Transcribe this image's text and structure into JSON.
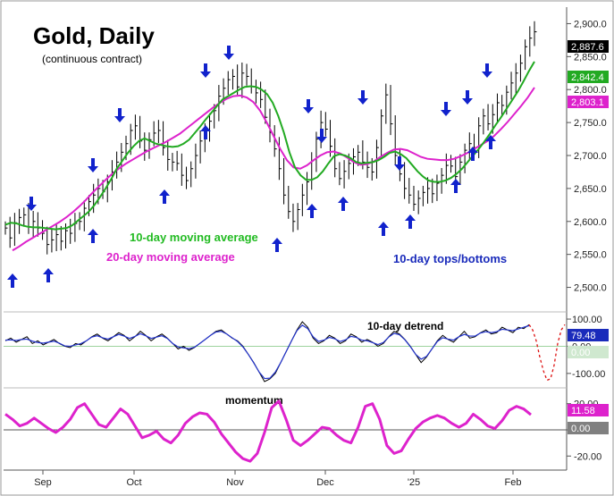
{
  "chart_data": [
    {
      "type": "line",
      "panel": "price",
      "title": "Gold, Daily",
      "subtitle": "(continuous contract)",
      "x_ticks": [
        "Sep",
        "Oct",
        "Nov",
        "Dec",
        "'25",
        "Feb"
      ],
      "y_ticks": [
        "2,900.0",
        "2,850.0",
        "2,800.0",
        "2,750.0",
        "2,700.0",
        "2,650.0",
        "2,600.0",
        "2,550.0",
        "2,500.0"
      ],
      "ylim": [
        2475,
        2925
      ],
      "legend": {
        "ma10_label": "10-day moving average",
        "ma20_label": "20-day moving average",
        "turns_label": "10-day tops/bottoms"
      },
      "last_values": {
        "price": "2,887.6",
        "ma10": "2,842.4",
        "ma20": "2,803.1"
      },
      "price_closes": [
        2590,
        2575,
        2598,
        2606,
        2610,
        2592,
        2600,
        2590,
        2582,
        2565,
        2572,
        2580,
        2570,
        2586,
        2582,
        2597,
        2600,
        2620,
        2630,
        2640,
        2650,
        2645,
        2660,
        2675,
        2690,
        2705,
        2718,
        2738,
        2745,
        2722,
        2708,
        2724,
        2734,
        2738,
        2712,
        2694,
        2690,
        2688,
        2670,
        2662,
        2680,
        2700,
        2722,
        2735,
        2752,
        2768,
        2790,
        2802,
        2815,
        2820,
        2804,
        2825,
        2820,
        2805,
        2795,
        2785,
        2758,
        2735,
        2710,
        2680,
        2640,
        2615,
        2600,
        2618,
        2640,
        2660,
        2692,
        2725,
        2750,
        2740,
        2714,
        2680,
        2665,
        2676,
        2688,
        2698,
        2705,
        2690,
        2682,
        2675,
        2712,
        2760,
        2792,
        2748,
        2700,
        2672,
        2650,
        2640,
        2626,
        2635,
        2644,
        2650,
        2642,
        2658,
        2670,
        2685,
        2684,
        2668,
        2690,
        2708,
        2718,
        2712,
        2745,
        2760,
        2748,
        2762,
        2780,
        2776,
        2796,
        2810,
        2825,
        2840,
        2865,
        2878,
        2887.6
      ],
      "ma10": [
        2595,
        2598,
        2597,
        2594,
        2592,
        2591,
        2591,
        2590,
        2589,
        2588,
        2589,
        2590,
        2594,
        2601,
        2608,
        2615,
        2625,
        2637,
        2650,
        2664,
        2680,
        2692,
        2704,
        2714,
        2722,
        2726,
        2722,
        2718,
        2716,
        2714,
        2713,
        2714,
        2718,
        2724,
        2734,
        2744,
        2755,
        2765,
        2775,
        2785,
        2790,
        2795,
        2800,
        2804,
        2805,
        2804,
        2800,
        2793,
        2780,
        2760,
        2735,
        2705,
        2682,
        2670,
        2663,
        2663,
        2667,
        2676,
        2688,
        2699,
        2702,
        2700,
        2696,
        2690,
        2688,
        2689,
        2690,
        2693,
        2698,
        2704,
        2706,
        2702,
        2696,
        2686,
        2676,
        2668,
        2662,
        2660,
        2660,
        2662,
        2666,
        2672,
        2680,
        2690,
        2700,
        2710,
        2721,
        2733,
        2746,
        2758,
        2771,
        2784,
        2797,
        2812,
        2828,
        2842.4
      ],
      "ma20": [
        2556,
        2562,
        2569,
        2575,
        2581,
        2587,
        2593,
        2599,
        2606,
        2614,
        2623,
        2633,
        2644,
        2654,
        2664,
        2673,
        2681,
        2688,
        2694,
        2700,
        2706,
        2711,
        2716,
        2721,
        2727,
        2733,
        2741,
        2749,
        2757,
        2765,
        2773,
        2780,
        2786,
        2790,
        2791,
        2788,
        2781,
        2768,
        2750,
        2730,
        2710,
        2693,
        2682,
        2680,
        2685,
        2693,
        2700,
        2705,
        2706,
        2703,
        2697,
        2690,
        2686,
        2687,
        2691,
        2698,
        2704,
        2709,
        2710,
        2708,
        2703,
        2698,
        2695,
        2694,
        2693,
        2693,
        2695,
        2699,
        2704,
        2710,
        2716,
        2722,
        2730,
        2740,
        2751,
        2763,
        2775,
        2788,
        2803.1
      ],
      "tops": [
        "Sep-08",
        "Sep-25",
        "Oct-10",
        "Oct-29",
        "Nov-05",
        "Nov-25",
        "Dec-02",
        "Dec-13",
        "Jan-06",
        "Jan-22",
        "Jan-28",
        "Feb-03"
      ],
      "bottoms": [
        "Aug-30",
        "Sep-11",
        "Sep-25",
        "Oct-23",
        "Nov-05",
        "Nov-14",
        "Dec-04",
        "Dec-10",
        "Dec-19",
        "Jan-02",
        "Jan-17",
        "Jan-24",
        "Jan-30"
      ]
    },
    {
      "type": "line",
      "panel": "detrend",
      "title": "10-day detrend",
      "y_ticks": [
        "100.00",
        "0.00",
        "-100.00"
      ],
      "ylim": [
        -140,
        110
      ],
      "last_values": {
        "detrend": "79.48",
        "zero": "0.00"
      },
      "values": [
        20,
        30,
        15,
        25,
        35,
        10,
        20,
        5,
        15,
        25,
        10,
        0,
        -5,
        10,
        5,
        20,
        35,
        45,
        30,
        20,
        35,
        50,
        40,
        20,
        35,
        55,
        40,
        20,
        35,
        45,
        30,
        10,
        -10,
        0,
        -15,
        -5,
        10,
        25,
        40,
        55,
        60,
        45,
        30,
        20,
        0,
        -30,
        -60,
        -95,
        -130,
        -120,
        -100,
        -60,
        -20,
        20,
        60,
        90,
        70,
        30,
        10,
        20,
        40,
        30,
        10,
        20,
        45,
        35,
        15,
        25,
        15,
        0,
        10,
        35,
        55,
        45,
        25,
        0,
        -30,
        -60,
        -40,
        -10,
        20,
        40,
        25,
        15,
        35,
        55,
        30,
        35,
        50,
        60,
        45,
        50,
        70,
        60,
        50,
        70,
        65,
        79.48
      ],
      "projection": [
        79.48,
        60,
        20,
        -40,
        -90,
        -125,
        -120,
        -70,
        10,
        60,
        79.48
      ]
    },
    {
      "type": "line",
      "panel": "momentum",
      "title": "momentum",
      "y_ticks": [
        "20.00",
        "0.00",
        "-20.00"
      ],
      "ylim": [
        -28,
        28
      ],
      "last_values": {
        "momentum": "11.58",
        "zero": "0.00"
      },
      "values": [
        12,
        8,
        3,
        5,
        9,
        5,
        1,
        -2,
        2,
        8,
        17,
        20,
        12,
        4,
        2,
        9,
        16,
        12,
        3,
        -6,
        -4,
        -1,
        -7,
        -10,
        -4,
        5,
        10,
        13,
        12,
        6,
        -3,
        -10,
        -17,
        -22,
        -24,
        -18,
        -2,
        17,
        22,
        8,
        -8,
        -12,
        -8,
        -3,
        2,
        1,
        -4,
        -8,
        -10,
        2,
        18,
        20,
        8,
        -12,
        -18,
        -16,
        -7,
        1,
        6,
        9,
        11,
        9,
        5,
        2,
        5,
        12,
        8,
        3,
        1,
        7,
        15,
        18,
        16,
        11.58
      ]
    }
  ]
}
